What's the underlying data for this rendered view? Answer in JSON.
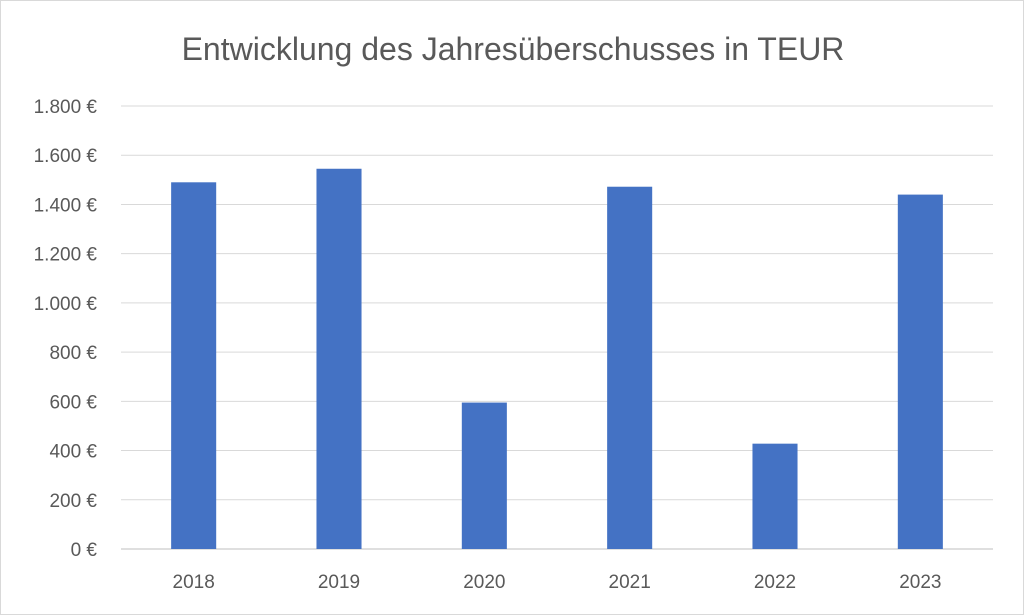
{
  "chart_data": {
    "type": "bar",
    "title": "Entwicklung des Jahresüberschusses in TEUR",
    "xlabel": "",
    "ylabel": "",
    "categories": [
      "2018",
      "2019",
      "2020",
      "2021",
      "2022",
      "2023"
    ],
    "values": [
      1490,
      1545,
      595,
      1472,
      428,
      1440
    ],
    "ylim": [
      0,
      1800
    ],
    "y_ticks": [
      0,
      200,
      400,
      600,
      800,
      1000,
      1200,
      1400,
      1600,
      1800
    ],
    "y_tick_labels": [
      "0 €",
      "200 €",
      "400 €",
      "600 €",
      "800 €",
      "1.000 €",
      "1.200 €",
      "1.400 €",
      "1.600 €",
      "1.800 €"
    ],
    "grid": true,
    "legend": "none",
    "bar_color": "#4472C4"
  }
}
